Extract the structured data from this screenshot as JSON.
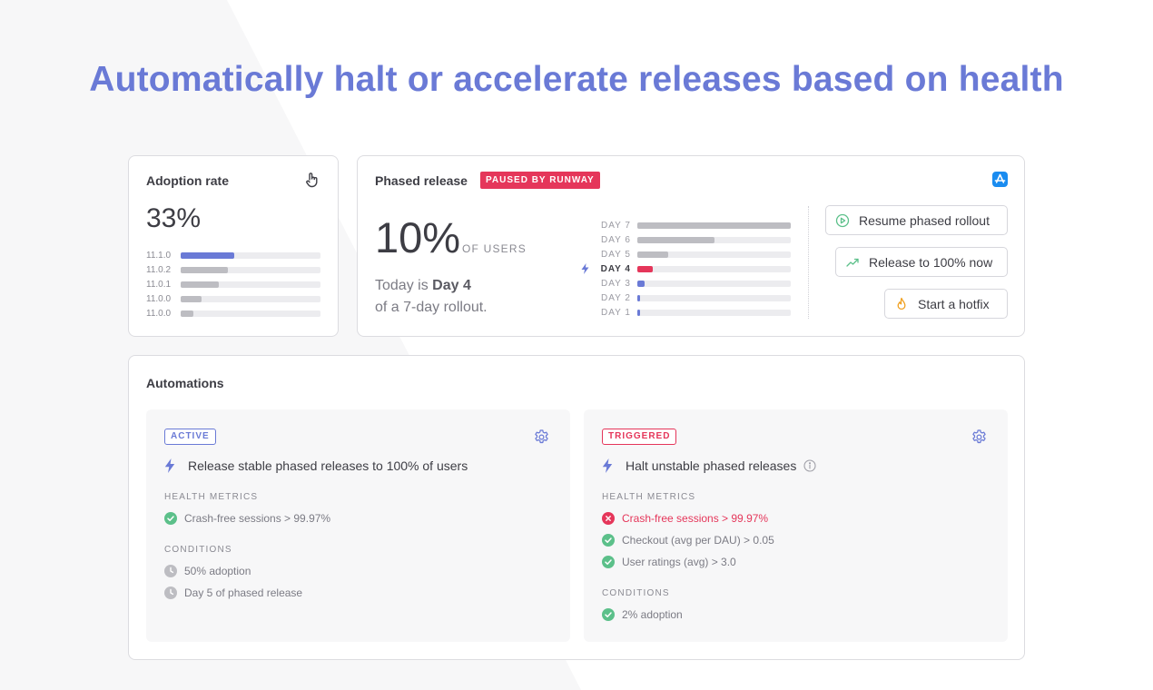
{
  "headline": "Automatically halt or accelerate releases based on health",
  "colors": {
    "accent": "#6a7ad6",
    "danger": "#e5365a",
    "success": "#5cc08a",
    "neutral_bar": "#bdbdc2",
    "hotfix": "#f0a020"
  },
  "adoption": {
    "title": "Adoption rate",
    "icon": "pointer-hand-icon",
    "value": "33%",
    "versions": [
      {
        "label": "11.1.0",
        "fraction": 0.38,
        "highlight": true
      },
      {
        "label": "11.0.2",
        "fraction": 0.34,
        "highlight": false
      },
      {
        "label": "11.0.1",
        "fraction": 0.27,
        "highlight": false
      },
      {
        "label": "11.0.0",
        "fraction": 0.15,
        "highlight": false
      },
      {
        "label": "11.0.0",
        "fraction": 0.09,
        "highlight": false
      }
    ]
  },
  "phased": {
    "title": "Phased release",
    "badge": "PAUSED BY RUNWAY",
    "icon": "app-store-icon",
    "value": "10%",
    "value_label": "OF USERS",
    "today_prefix": "Today is",
    "today_day": "Day 4",
    "rollout_text": "of a 7-day rollout.",
    "days": [
      {
        "label": "DAY 7",
        "fraction": 1.0,
        "state": "future"
      },
      {
        "label": "DAY 6",
        "fraction": 0.5,
        "state": "future"
      },
      {
        "label": "DAY 5",
        "fraction": 0.2,
        "state": "future"
      },
      {
        "label": "DAY 4",
        "fraction": 0.1,
        "state": "current"
      },
      {
        "label": "DAY 3",
        "fraction": 0.05,
        "state": "done"
      },
      {
        "label": "DAY 2",
        "fraction": 0.02,
        "state": "done"
      },
      {
        "label": "DAY 1",
        "fraction": 0.01,
        "state": "done"
      }
    ],
    "actions": {
      "resume": "Resume phased rollout",
      "release": "Release to 100% now",
      "hotfix": "Start a hotfix"
    }
  },
  "automations": {
    "title": "Automations",
    "left": {
      "badge": "ACTIVE",
      "rule": "Release stable phased releases to 100% of users",
      "health_label": "HEALTH METRICS",
      "metrics": [
        {
          "text": "Crash-free sessions > 99.97%",
          "status": "pass"
        }
      ],
      "conditions_label": "CONDITIONS",
      "conditions": [
        {
          "text": "50% adoption",
          "status": "pending"
        },
        {
          "text": "Day 5 of phased release",
          "status": "pending"
        }
      ]
    },
    "right": {
      "badge": "TRIGGERED",
      "rule": "Halt unstable phased releases",
      "health_label": "HEALTH METRICS",
      "metrics": [
        {
          "text": "Crash-free sessions > 99.97%",
          "status": "fail"
        },
        {
          "text": "Checkout (avg per DAU) > 0.05",
          "status": "pass"
        },
        {
          "text": "User ratings (avg) > 3.0",
          "status": "pass"
        }
      ],
      "conditions_label": "CONDITIONS",
      "conditions": [
        {
          "text": "2% adoption",
          "status": "pass"
        }
      ]
    }
  }
}
